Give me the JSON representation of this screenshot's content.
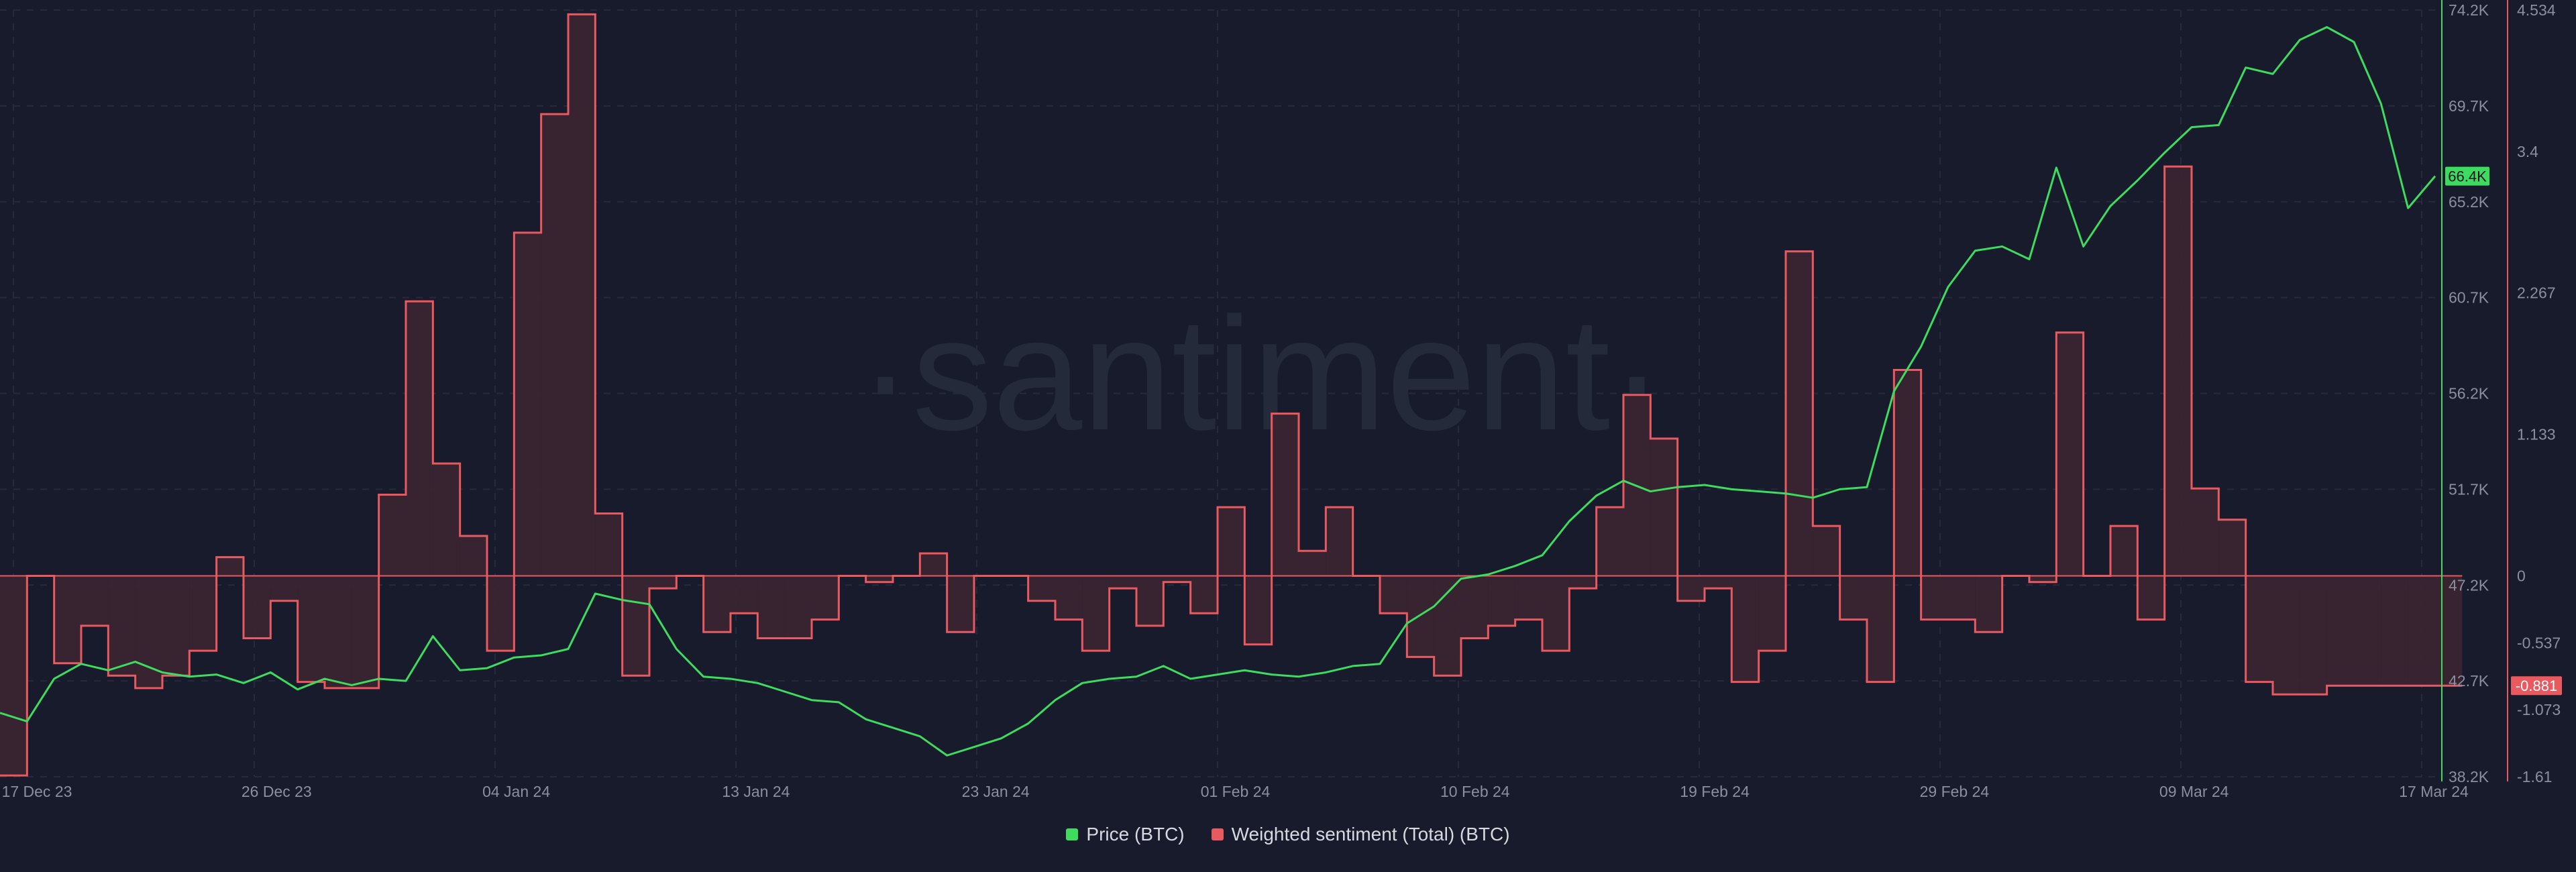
{
  "watermark": "·santiment·",
  "legend": [
    {
      "label": "Price (BTC)",
      "color": "#3ddc5f"
    },
    {
      "label": "Weighted sentiment (Total) (BTC)",
      "color": "#e85a5f"
    }
  ],
  "colors": {
    "background": "#181b2b",
    "grid": "#262a3c",
    "price": "#3ddc5f",
    "sentiment": "#e85a5f",
    "sentiment_fill": "#3a2430"
  },
  "chart_data": {
    "type": "line",
    "x_tick_labels": [
      "17 Dec 23",
      "26 Dec 23",
      "04 Jan 24",
      "13 Jan 24",
      "23 Jan 24",
      "01 Feb 24",
      "10 Feb 24",
      "19 Feb 24",
      "29 Feb 24",
      "09 Mar 24",
      "17 Mar 24"
    ],
    "x_range": [
      0,
      90
    ],
    "grid": "dashed",
    "legend_position": "bottom-center",
    "y_left": {
      "label": "",
      "tick_labels": [
        "74.2K",
        "69.7K",
        "65.2K",
        "60.7K",
        "56.2K",
        "51.7K",
        "47.2K",
        "42.7K",
        "38.2K"
      ],
      "range": [
        38200,
        74200
      ],
      "current_value_label": "66.4K"
    },
    "y_right": {
      "label": "",
      "tick_labels": [
        "4.534",
        "3.4",
        "2.267",
        "1.133",
        "0",
        "-0.537",
        "-1.073",
        "-1.61"
      ],
      "range": [
        -1.61,
        4.534
      ],
      "current_value_label": "-0.881"
    },
    "series": [
      {
        "name": "Price (BTC)",
        "axis": "left",
        "x": [
          0,
          1,
          2,
          3,
          4,
          5,
          6,
          7,
          8,
          9,
          10,
          11,
          12,
          13,
          14,
          15,
          16,
          17,
          18,
          19,
          20,
          21,
          22,
          23,
          24,
          25,
          26,
          27,
          28,
          29,
          30,
          31,
          32,
          33,
          34,
          35,
          36,
          37,
          38,
          39,
          40,
          41,
          42,
          43,
          44,
          45,
          46,
          47,
          48,
          49,
          50,
          51,
          52,
          53,
          54,
          55,
          56,
          57,
          58,
          59,
          60,
          61,
          62,
          63,
          64,
          65,
          66,
          67,
          68,
          69,
          70,
          71,
          72,
          73,
          74,
          75,
          76,
          77,
          78,
          79,
          80,
          81,
          82,
          83,
          84,
          85,
          86,
          87,
          88,
          89,
          90
        ],
        "y": [
          41200,
          40800,
          42800,
          43500,
          43200,
          43600,
          43100,
          42900,
          43000,
          42600,
          43100,
          42300,
          42800,
          42500,
          42800,
          42700,
          44800,
          43200,
          43300,
          43800,
          43900,
          44200,
          46800,
          46500,
          46300,
          44200,
          42900,
          42800,
          42600,
          42200,
          41800,
          41700,
          40900,
          40500,
          40100,
          39200,
          39600,
          40000,
          40700,
          41800,
          42600,
          42800,
          42900,
          43400,
          42800,
          43000,
          43200,
          43000,
          42900,
          43100,
          43400,
          43500,
          45400,
          46200,
          47500,
          47700,
          48100,
          48600,
          50200,
          51400,
          52100,
          51600,
          51800,
          51900,
          51700,
          51600,
          51500,
          51300,
          51700,
          51800,
          56300,
          58400,
          61200,
          62900,
          63100,
          62500,
          66800,
          63100,
          65000,
          66200,
          67500,
          68700,
          68800,
          71500,
          71200,
          72800,
          73400,
          72700,
          69800,
          64900,
          66400
        ]
      },
      {
        "name": "Weighted sentiment (Total) (BTC)",
        "axis": "right",
        "step": true,
        "x": [
          0,
          1,
          2,
          3,
          4,
          5,
          6,
          7,
          8,
          9,
          10,
          11,
          12,
          13,
          14,
          15,
          16,
          17,
          18,
          19,
          20,
          21,
          22,
          23,
          24,
          25,
          26,
          27,
          28,
          29,
          30,
          31,
          32,
          33,
          34,
          35,
          36,
          37,
          38,
          39,
          40,
          41,
          42,
          43,
          44,
          45,
          46,
          47,
          48,
          49,
          50,
          51,
          52,
          53,
          54,
          55,
          56,
          57,
          58,
          59,
          60,
          61,
          62,
          63,
          64,
          65,
          66,
          67,
          68,
          69,
          70,
          71,
          72,
          73,
          74,
          75,
          76,
          77,
          78,
          79,
          80,
          81,
          82,
          83,
          84,
          85,
          86,
          87,
          88,
          89,
          90
        ],
        "y": [
          -1.6,
          0.0,
          -0.7,
          -0.4,
          -0.8,
          -0.9,
          -0.8,
          -0.6,
          0.15,
          -0.5,
          -0.2,
          -0.85,
          -0.9,
          -0.9,
          0.65,
          2.2,
          0.9,
          0.32,
          -0.6,
          2.75,
          3.7,
          4.5,
          0.5,
          -0.8,
          -0.1,
          0.0,
          -0.45,
          -0.3,
          -0.5,
          -0.5,
          -0.35,
          0.0,
          -0.05,
          0.0,
          0.18,
          -0.45,
          0.0,
          0.0,
          -0.2,
          -0.35,
          -0.6,
          -0.1,
          -0.4,
          -0.05,
          -0.3,
          0.55,
          -0.55,
          1.3,
          0.2,
          0.55,
          0.0,
          -0.3,
          -0.65,
          -0.8,
          -0.5,
          -0.4,
          -0.35,
          -0.6,
          -0.1,
          0.55,
          1.45,
          1.1,
          -0.2,
          -0.1,
          -0.85,
          -0.6,
          2.6,
          0.4,
          -0.35,
          -0.85,
          1.65,
          -0.35,
          -0.35,
          -0.45,
          0.0,
          -0.05,
          1.95,
          0.0,
          0.4,
          -0.35,
          3.28,
          0.7,
          0.45,
          -0.85,
          -0.95,
          -0.95,
          -0.88,
          -0.88,
          -0.88,
          -0.88,
          -0.88
        ]
      }
    ]
  }
}
